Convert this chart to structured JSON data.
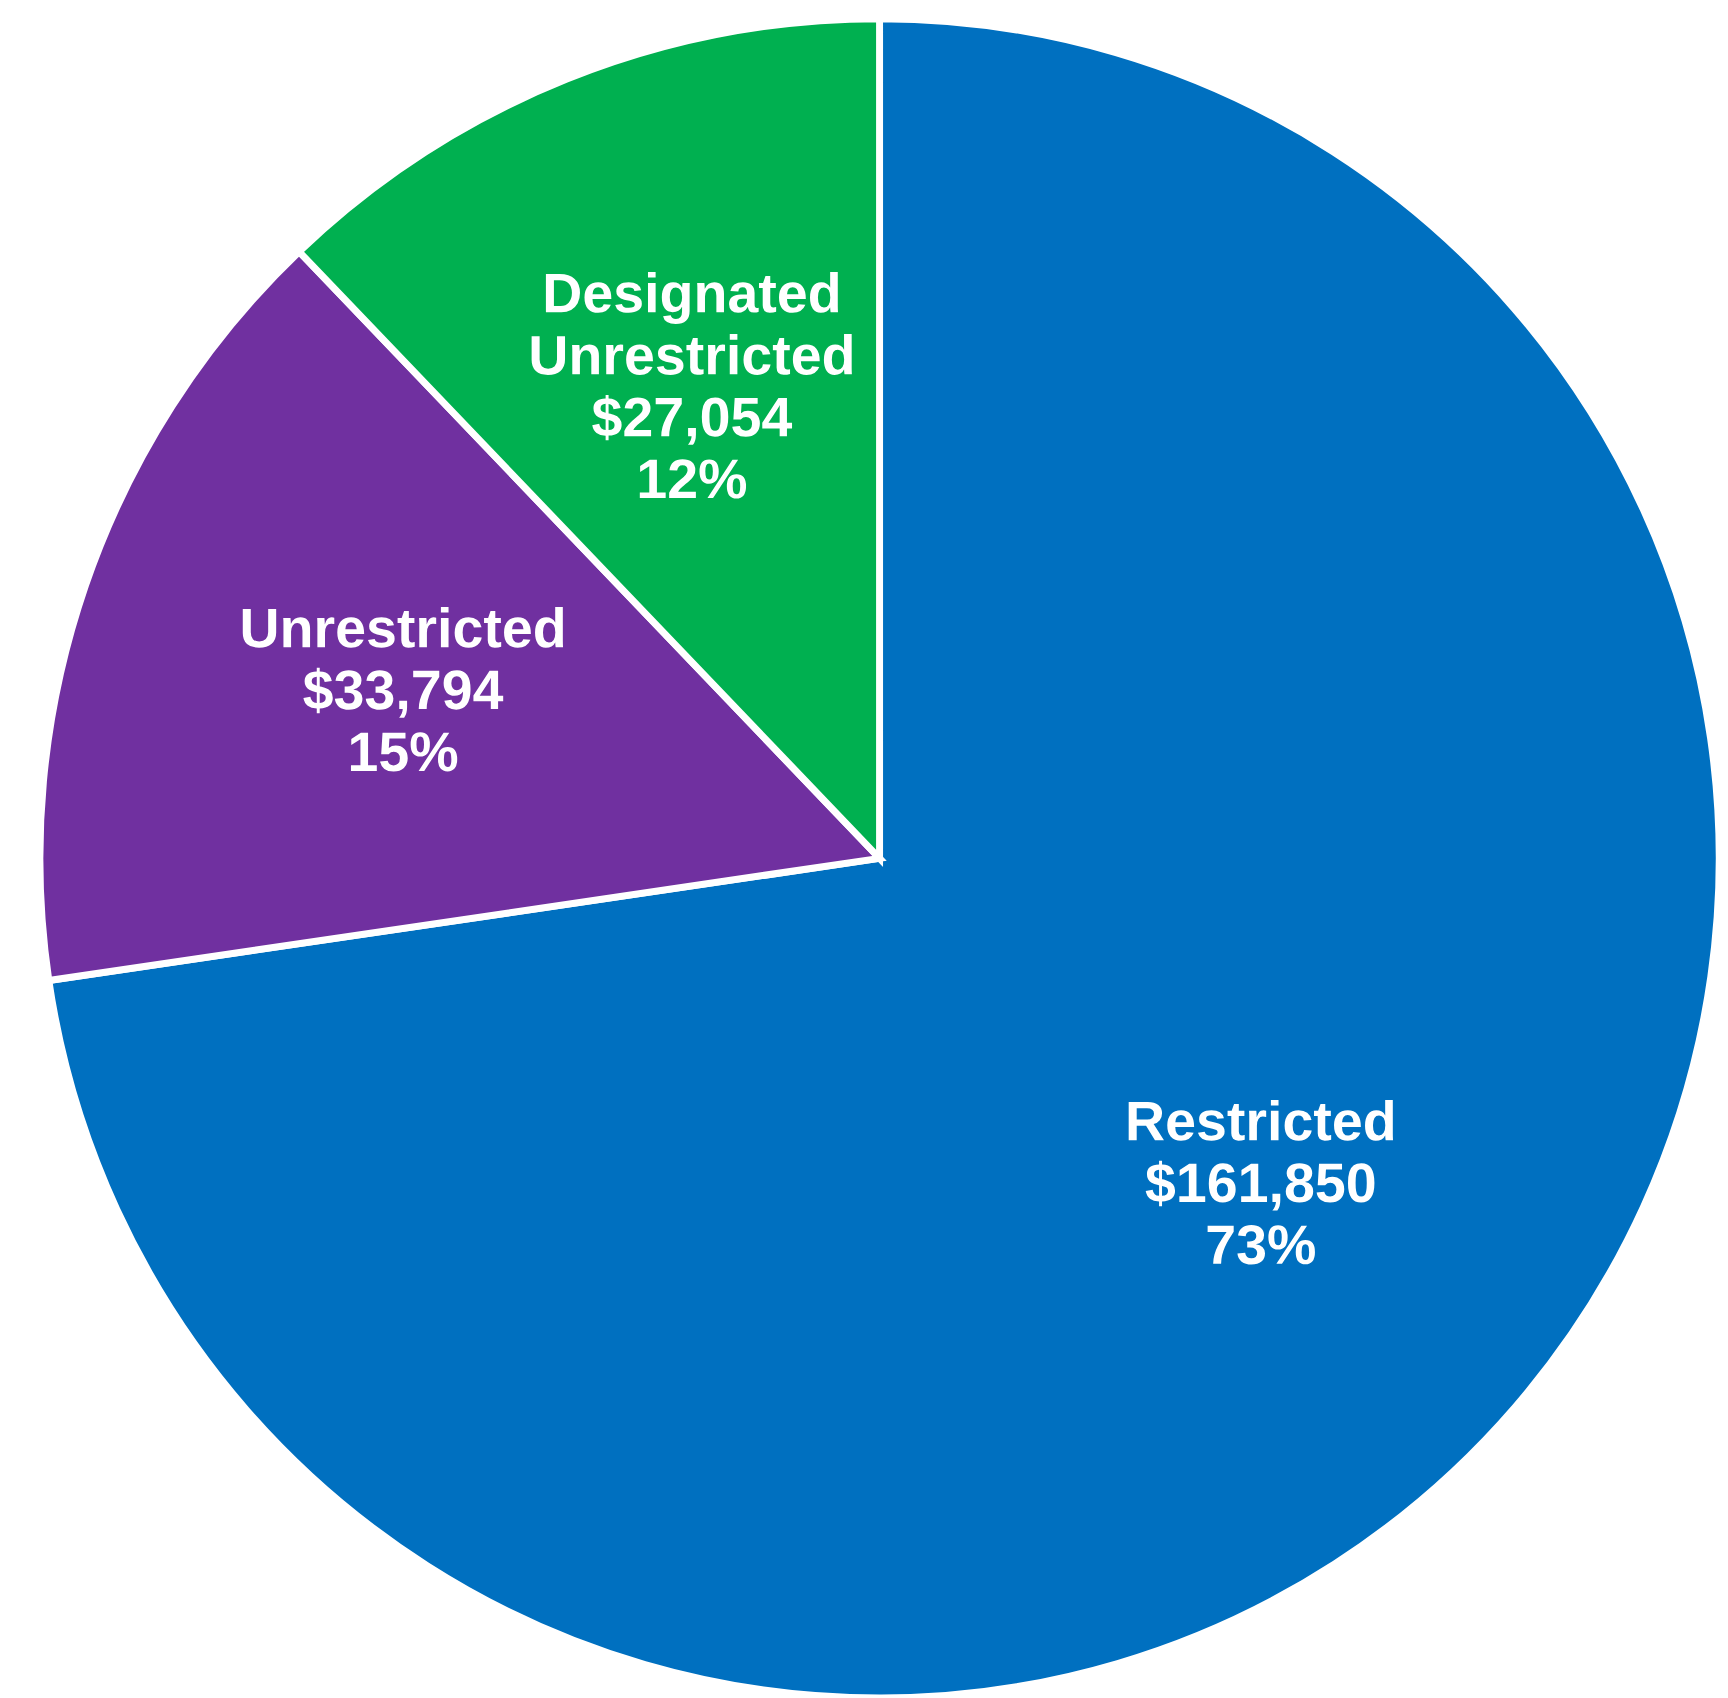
{
  "chart_data": {
    "type": "pie",
    "categories": [
      "Restricted",
      "Unrestricted",
      "Designated\nUnrestricted"
    ],
    "values": [
      161850,
      33794,
      27054
    ],
    "colors": [
      "#0070c0",
      "#7030a0",
      "#00b050"
    ],
    "value_labels": [
      "$161,850\n73%",
      "$33,794\n15%",
      "$27,054\n12%"
    ]
  }
}
